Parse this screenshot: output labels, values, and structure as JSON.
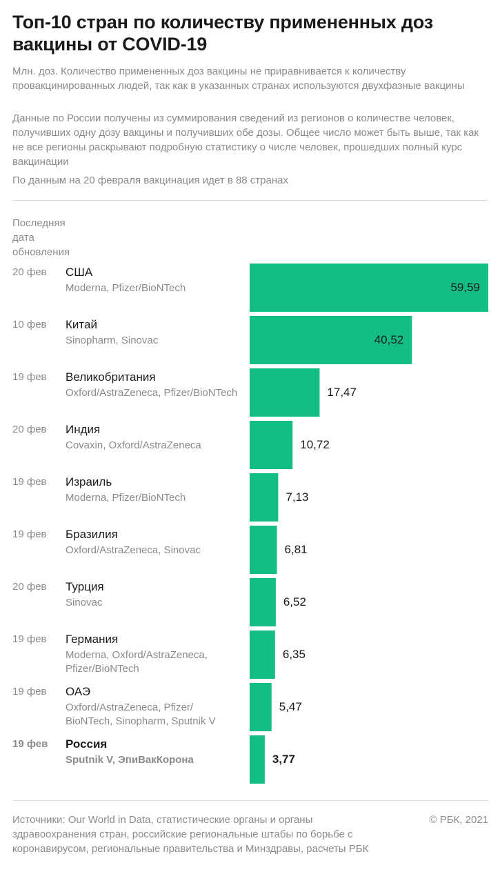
{
  "header": {
    "title": "Топ-10 стран по количеству примененных доз вакцины от COVID-19",
    "note_units": "Млн. доз. Количество примененных доз вакцины не приравнивается к количеству провакцинированных людей, так как в указанных странах используются двухфазные вакцины",
    "note_russia": "Данные по России получены из суммирования сведений из регионов о количестве человек, получивших одну дозу вакцины и получивших обе дозы. Общее число может быть выше, так как не все регионы раскрывают подробную статистику о числе человек, прошедших полный курс вакцинации",
    "note_countries": "По данным на 20 февраля вакцинация идет в 88 странах"
  },
  "columns": {
    "date_header": "Последняя дата обновления"
  },
  "chart_data": {
    "type": "bar",
    "orientation": "horizontal",
    "categories": [
      "США",
      "Китай",
      "Великобритания",
      "Индия",
      "Израиль",
      "Бразилия",
      "Турция",
      "Германия",
      "ОАЭ",
      "Россия"
    ],
    "values": [
      59.59,
      40.52,
      17.47,
      10.72,
      7.13,
      6.81,
      6.52,
      6.35,
      5.47,
      3.77
    ],
    "value_labels": [
      "59,59",
      "40,52",
      "17,47",
      "10,72",
      "7,13",
      "6,81",
      "6,52",
      "6,35",
      "5,47",
      "3,77"
    ],
    "dates": [
      "20 фев",
      "10 фев",
      "19 фев",
      "20 фев",
      "19 фев",
      "19 фев",
      "20 фев",
      "19 фев",
      "19 фев",
      "19 фев"
    ],
    "vaccines": [
      "Moderna, Pfizer/BioNTech",
      "Sinopharm, Sinovac",
      "Oxford/AstraZeneca, Pfizer/BioNTech",
      "Covaxin, Oxford/AstraZeneca",
      "Moderna, Pfizer/BioNTech",
      "Oxford/AstraZeneca, Sinovac",
      "Sinovac",
      "Moderna, Oxford/AstraZeneca, Pfizer/BioNTech",
      "Oxford/AstraZeneca, Pfizer/ BioNTech, Sinopharm, Sputnik V",
      "Sputnik V, ЭпиВакКорона"
    ],
    "highlight": "Россия",
    "xlim": [
      0,
      59.59
    ],
    "bar_color": "#13be82",
    "grid": false
  },
  "footer": {
    "sources": "Источники: Our World in Data, статистические органы и органы здравоохранения стран, российские региональные штабы по борьбе с коронавирусом, региональные правительства и Минздравы, расчеты РБК",
    "copyright": "© РБК, 2021"
  }
}
